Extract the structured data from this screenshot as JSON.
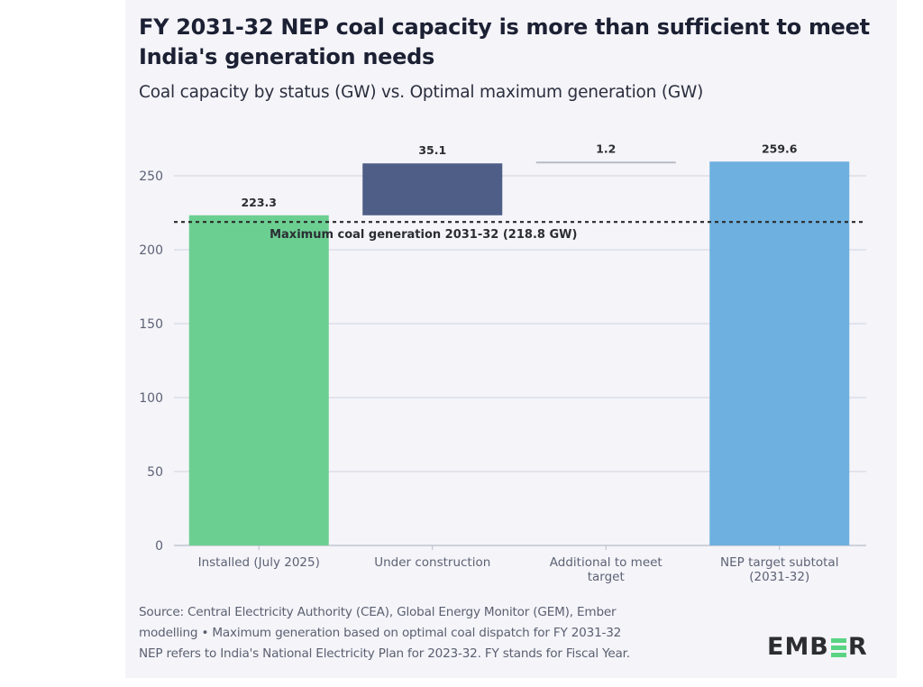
{
  "header": {
    "title": "FY 2031-32 NEP coal capacity is more than sufficient to meet India's generation needs",
    "subtitle": "Coal capacity by status (GW) vs. Optimal maximum generation (GW)"
  },
  "footer": {
    "source_lines": [
      "Source: Central Electricity Authority (CEA), Global Energy Monitor (GEM), Ember",
      "modelling • Maximum generation based on optimal coal dispatch for FY 2031-32",
      "NEP refers to India's National Electricity Plan for 2023-32. FY stands for Fiscal Year."
    ],
    "logo_text": [
      "EMB",
      "R"
    ],
    "logo_name": "EMBER"
  },
  "chart_data": {
    "type": "bar",
    "subtype": "waterfall",
    "title": "FY 2031-32 NEP coal capacity is more than sufficient to meet India's generation needs",
    "subtitle": "Coal capacity by status (GW) vs. Optimal maximum generation (GW)",
    "xlabel": "",
    "ylabel": "",
    "ylim": [
      0,
      270
    ],
    "yticks": [
      0,
      50,
      100,
      150,
      200,
      250
    ],
    "grid": true,
    "categories": [
      [
        "Installed (July 2025)"
      ],
      [
        "Under construction"
      ],
      [
        "Additional to meet",
        "target"
      ],
      [
        "NEP target subtotal",
        "(2031-32)"
      ]
    ],
    "bars": [
      {
        "label": "Installed (July 2025)",
        "start": 0,
        "value": 223.3,
        "data_label": "223.3",
        "color": "#6ccf92"
      },
      {
        "label": "Under construction",
        "start": 223.3,
        "value": 35.1,
        "data_label": "35.1",
        "color": "#46557f"
      },
      {
        "label": "Additional to meet target",
        "start": 258.4,
        "value": 1.2,
        "data_label": "1.2",
        "color": "#b8bbc4"
      },
      {
        "label": "NEP target subtotal (2031-32)",
        "start": 0,
        "value": 259.6,
        "data_label": "259.6",
        "color": "#6eb0df"
      }
    ],
    "reference_line": {
      "value": 218.8,
      "label": "Maximum coal generation 2031-32 (218.8 GW)",
      "style": "dashed",
      "color": "#222222"
    }
  }
}
